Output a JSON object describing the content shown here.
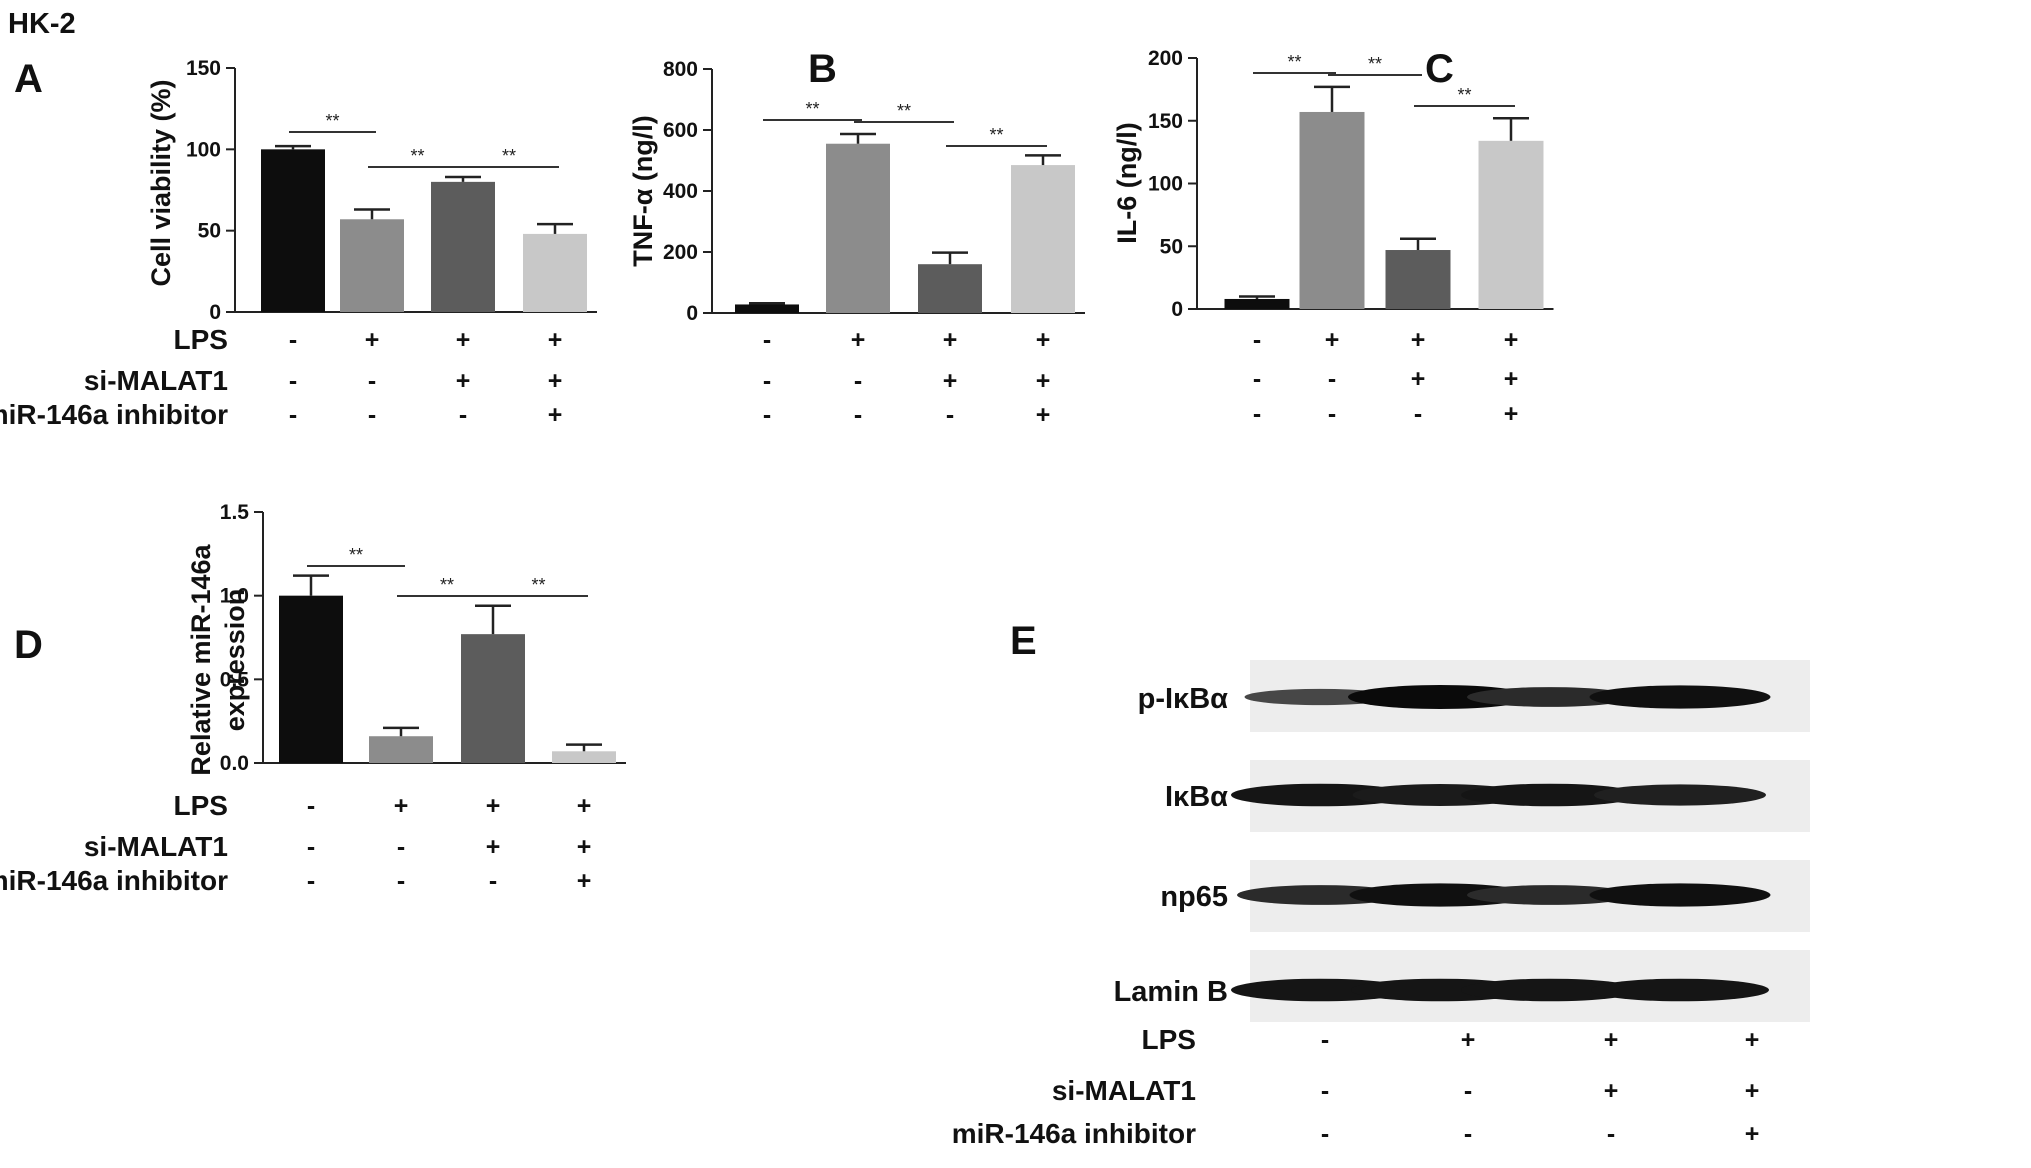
{
  "figure_title": "HK-2",
  "panels": {
    "A": {
      "letter": "A"
    },
    "B": {
      "letter": "B"
    },
    "C": {
      "letter": "C"
    },
    "D": {
      "letter": "D"
    },
    "E": {
      "letter": "E"
    }
  },
  "conditions": {
    "labels": [
      "LPS",
      "si-MALAT1",
      "miR-146a inhibitor"
    ],
    "signs": [
      [
        "-",
        "+",
        "+",
        "+"
      ],
      [
        "-",
        "-",
        "+",
        "+"
      ],
      [
        "-",
        "-",
        "-",
        "+"
      ]
    ]
  },
  "bar_colors": [
    "#0d0d0d",
    "#8c8c8c",
    "#5c5c5c",
    "#c8c8c8"
  ],
  "chart_data": [
    {
      "panel": "A",
      "type": "bar",
      "ylabel": "Cell viability (%)",
      "ylim": [
        0,
        150
      ],
      "yticks": [
        "0",
        "50",
        "100",
        "150"
      ],
      "values": [
        100,
        57,
        80,
        48
      ],
      "errors": [
        2,
        6,
        3,
        6
      ],
      "significance": [
        {
          "from": 0,
          "to": 1,
          "label": "**"
        },
        {
          "from": 1,
          "to": 2,
          "label": "**"
        },
        {
          "from": 2,
          "to": 3,
          "label": "**"
        }
      ]
    },
    {
      "panel": "B",
      "type": "bar",
      "ylabel": "TNF-α (ng/l)",
      "ylim": [
        0,
        800
      ],
      "yticks": [
        "0",
        "200",
        "400",
        "600",
        "800"
      ],
      "values": [
        28,
        555,
        160,
        485
      ],
      "errors": [
        4,
        32,
        38,
        32
      ],
      "significance": [
        {
          "from": 0,
          "to": 1,
          "label": "**"
        },
        {
          "from": 1,
          "to": 2,
          "label": "**"
        },
        {
          "from": 2,
          "to": 3,
          "label": "**"
        }
      ]
    },
    {
      "panel": "C",
      "type": "bar",
      "ylabel": "IL-6 (ng/l)",
      "ylim": [
        0,
        200
      ],
      "yticks": [
        "0",
        "50",
        "100",
        "150",
        "200"
      ],
      "values": [
        8,
        157,
        47,
        134
      ],
      "errors": [
        2,
        20,
        9,
        18
      ],
      "significance": [
        {
          "from": 0,
          "to": 1,
          "label": "**"
        },
        {
          "from": 1,
          "to": 2,
          "label": "**"
        },
        {
          "from": 2,
          "to": 3,
          "label": "**"
        }
      ]
    },
    {
      "panel": "D",
      "type": "bar",
      "ylabel": [
        "Relative miR-146a",
        "expression"
      ],
      "ylim": [
        0,
        1.5
      ],
      "yticks": [
        "0.0",
        "0.5",
        "1.0",
        "1.5"
      ],
      "values": [
        1.0,
        0.16,
        0.77,
        0.07
      ],
      "errors": [
        0.12,
        0.05,
        0.17,
        0.04
      ],
      "significance": [
        {
          "from": 0,
          "to": 1,
          "label": "**"
        },
        {
          "from": 1,
          "to": 2,
          "label": "**"
        },
        {
          "from": 2,
          "to": 3,
          "label": "**"
        }
      ]
    }
  ],
  "western_blot": {
    "bands": [
      "p-IκBα",
      "IκBα",
      "np65",
      "Lamin B"
    ],
    "intensities": [
      [
        0.45,
        1.0,
        0.7,
        0.95
      ],
      [
        0.9,
        0.85,
        0.9,
        0.8
      ],
      [
        0.7,
        0.95,
        0.7,
        0.95
      ],
      [
        0.9,
        0.9,
        0.9,
        0.9
      ]
    ]
  }
}
